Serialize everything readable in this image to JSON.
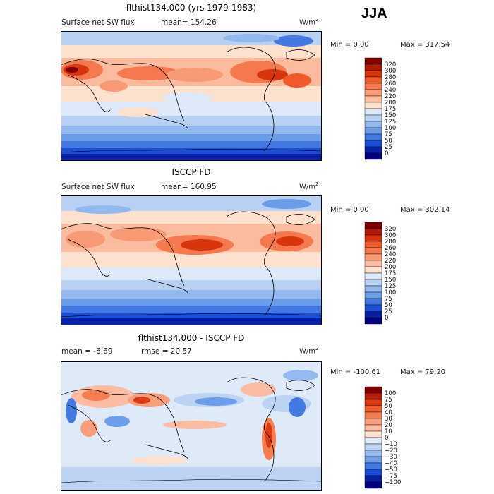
{
  "header": {
    "season": "JJA"
  },
  "units_base": "W/m",
  "units_exp": "2",
  "chart_data": [
    {
      "type": "heatmap",
      "title": "flthist134.000 (yrs 1979-1983)",
      "subtitle": "Surface net SW flux",
      "mean_text": "mean= 154.26",
      "min_text": "Min =    0.00",
      "max_text": "Max = 317.54",
      "min": 0.0,
      "max": 317.54,
      "mean": 154.26,
      "colorbar_levels": [
        "320",
        "300",
        "280",
        "260",
        "240",
        "220",
        "200",
        "175",
        "150",
        "125",
        "100",
        "75",
        "50",
        "25",
        "0"
      ],
      "colorbar_colors": [
        "#800000",
        "#b01a08",
        "#d8350f",
        "#ee5a2a",
        "#f4794e",
        "#f89a75",
        "#fbbb9e",
        "#fde1cf",
        "#dde9f8",
        "#b8d1f3",
        "#92b8ee",
        "#6b9ce8",
        "#4478e2",
        "#1d4ed8",
        "#0a1fa8",
        "#000080"
      ]
    },
    {
      "type": "heatmap",
      "title": "ISCCP FD",
      "subtitle": "Surface net SW flux",
      "mean_text": "mean= 160.95",
      "min_text": "Min =    0.00",
      "max_text": "Max = 302.14",
      "min": 0.0,
      "max": 302.14,
      "mean": 160.95,
      "colorbar_levels": [
        "320",
        "300",
        "280",
        "260",
        "240",
        "220",
        "200",
        "175",
        "150",
        "125",
        "100",
        "75",
        "50",
        "25",
        "0"
      ],
      "colorbar_colors": [
        "#800000",
        "#b01a08",
        "#d8350f",
        "#ee5a2a",
        "#f4794e",
        "#f89a75",
        "#fbbb9e",
        "#fde1cf",
        "#dde9f8",
        "#b8d1f3",
        "#92b8ee",
        "#6b9ce8",
        "#4478e2",
        "#1d4ed8",
        "#0a1fa8",
        "#000080"
      ]
    },
    {
      "type": "heatmap",
      "title": "flthist134.000 - ISCCP FD",
      "subtitle": "",
      "mean_text": "mean =   -6.69",
      "rmse_text": "rmse =  20.57",
      "min_text": "Min = -100.61",
      "max_text": "Max =  79.20",
      "min": -100.61,
      "max": 79.2,
      "mean": -6.69,
      "rmse": 20.57,
      "colorbar_levels": [
        "100",
        "75",
        "50",
        "40",
        "30",
        "20",
        "10",
        "0",
        "−10",
        "−20",
        "−30",
        "−40",
        "−50",
        "−75",
        "−100"
      ],
      "colorbar_colors": [
        "#800000",
        "#b81c0a",
        "#dd3a13",
        "#f05d2d",
        "#f57d52",
        "#f99d7b",
        "#fcbca3",
        "#fde0d0",
        "#dfeaf8",
        "#bcd3f4",
        "#95baef",
        "#6e9ee9",
        "#4579e2",
        "#1c4bd6",
        "#0a1ea4",
        "#000080"
      ]
    }
  ]
}
